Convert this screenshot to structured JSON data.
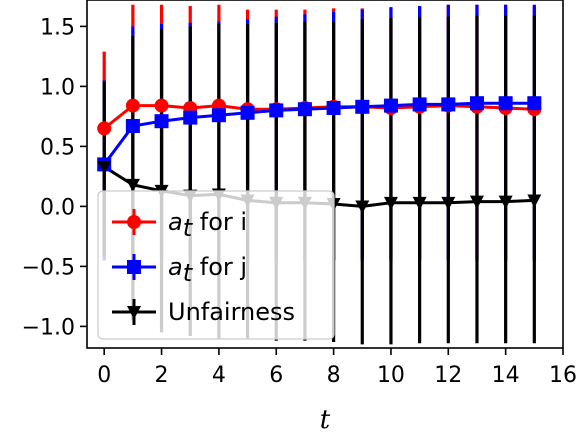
{
  "chart_data": {
    "type": "line",
    "xlabel": "t",
    "ylabel": "",
    "xlim": [
      -0.6,
      16
    ],
    "ylim": [
      -1.18,
      1.72
    ],
    "xticks": [
      0,
      2,
      4,
      6,
      8,
      10,
      12,
      14,
      16
    ],
    "yticks": [
      -1.0,
      -0.5,
      0.0,
      0.5,
      1.0,
      1.5
    ],
    "ytick_labels": [
      "−1.0",
      "−0.5",
      "0.0",
      "0.5",
      "1.0",
      "1.5"
    ],
    "grid": false,
    "legend_position": "lower-left",
    "x": [
      0,
      1,
      2,
      3,
      4,
      5,
      6,
      7,
      8,
      9,
      10,
      11,
      12,
      13,
      14,
      15
    ],
    "series": [
      {
        "legend_var": "a",
        "legend_sub": "t",
        "legend_rest": " for i",
        "color": "#ff0000",
        "marker": "circle",
        "values": [
          0.65,
          0.84,
          0.84,
          0.82,
          0.84,
          0.81,
          0.81,
          0.82,
          0.83,
          0.83,
          0.82,
          0.83,
          0.84,
          0.83,
          0.82,
          0.81
        ],
        "err_upper": [
          1.29,
          1.68,
          1.68,
          1.67,
          1.68,
          1.64,
          1.64,
          1.64,
          1.65,
          1.65,
          1.66,
          1.67,
          1.68,
          1.68,
          1.68,
          1.67
        ],
        "err_lower": [
          -0.45,
          -0.45,
          -0.45,
          -0.45,
          -0.45,
          -0.45,
          -0.45,
          -0.45,
          -0.45,
          -0.45,
          -0.45,
          -0.45,
          -0.45,
          -0.45,
          -0.45,
          -0.45
        ]
      },
      {
        "legend_var": "a",
        "legend_sub": "t",
        "legend_rest": " for j",
        "color": "#0000ff",
        "marker": "square",
        "values": [
          0.35,
          0.67,
          0.71,
          0.74,
          0.76,
          0.78,
          0.8,
          0.81,
          0.82,
          0.83,
          0.84,
          0.85,
          0.85,
          0.86,
          0.86,
          0.86
        ],
        "err_upper": [
          1.05,
          1.5,
          1.52,
          1.53,
          1.54,
          1.56,
          1.58,
          1.6,
          1.62,
          1.64,
          1.66,
          1.67,
          1.68,
          1.68,
          1.68,
          1.68
        ],
        "err_lower": [
          -0.45,
          -0.45,
          -0.45,
          -0.45,
          -0.45,
          -0.45,
          -0.45,
          -0.45,
          -0.45,
          -0.45,
          -0.45,
          -0.45,
          -0.45,
          -0.45,
          -0.45,
          -0.45
        ]
      },
      {
        "legend_var": "",
        "legend_sub": "",
        "legend_rest": "Unfairness",
        "color": "#000000",
        "marker": "triangle-down",
        "values": [
          0.33,
          0.18,
          0.13,
          0.09,
          0.1,
          0.05,
          0.03,
          0.03,
          0.02,
          0.0,
          0.03,
          0.03,
          0.03,
          0.04,
          0.04,
          0.05
        ],
        "err_upper": [
          1.04,
          1.42,
          1.48,
          1.5,
          1.52,
          1.52,
          1.53,
          1.54,
          1.54,
          1.56,
          1.57,
          1.58,
          1.58,
          1.59,
          1.59,
          1.59
        ],
        "err_lower": [
          -0.42,
          -0.95,
          -1.05,
          -1.08,
          -1.1,
          -1.1,
          -1.12,
          -1.12,
          -1.13,
          -1.15,
          -1.15,
          -1.14,
          -1.14,
          -1.14,
          -1.14,
          -1.14
        ]
      }
    ]
  }
}
